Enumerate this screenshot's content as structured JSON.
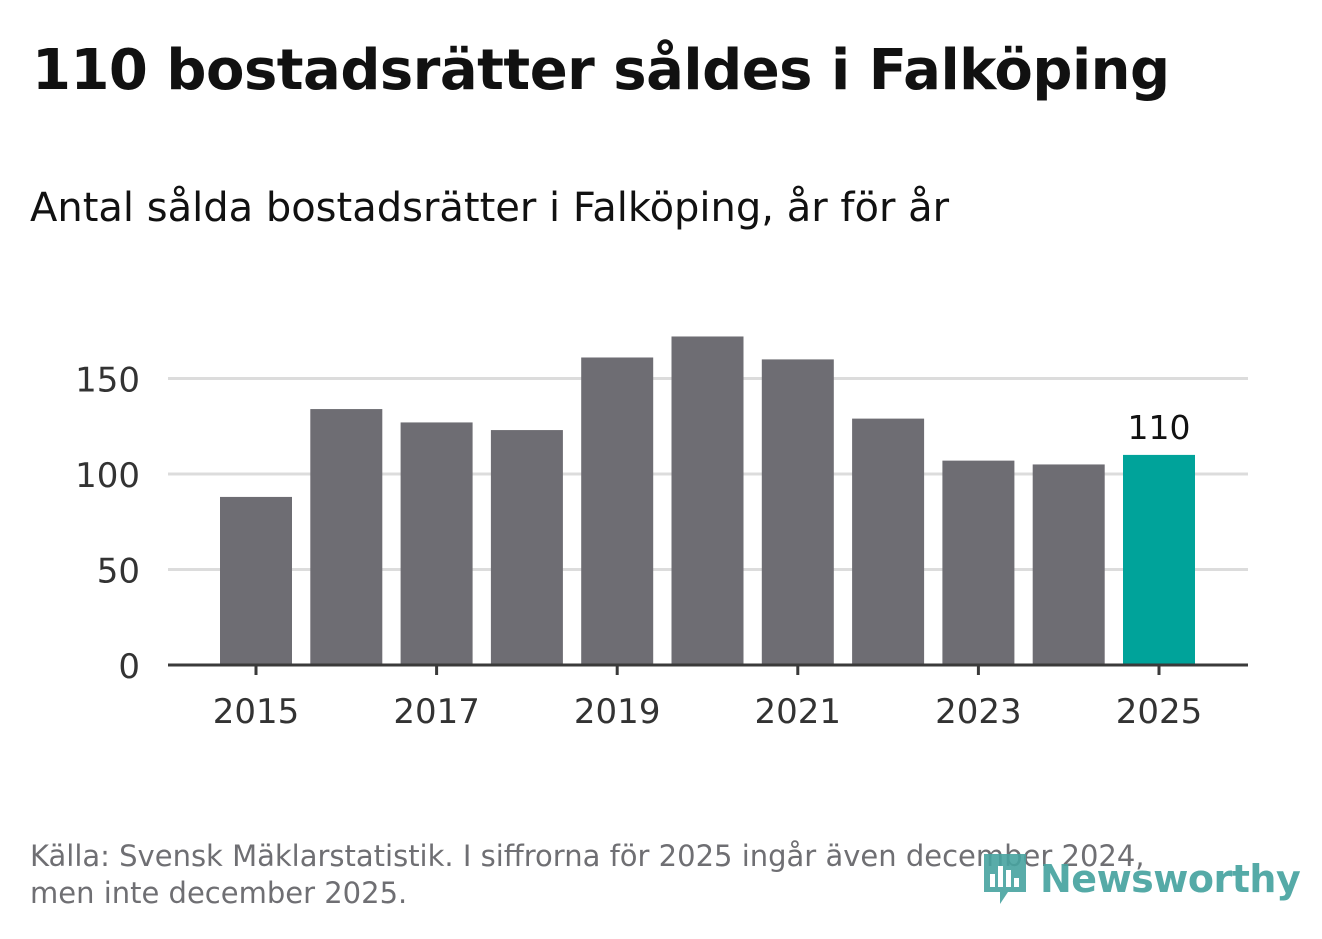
{
  "title": "110 bostadsrätter såldes i Falköping",
  "subtitle": "Antal sålda bostadsrätter i Falköping, år för år",
  "footer": {
    "line1": "Källa: Svensk Mäklarstatistik. I siffrorna för 2025 ingår även december 2024,",
    "line2": "men inte december 2025."
  },
  "brand": {
    "name": "Newsworthy",
    "icon": "bar-chart-speech-bubble-icon",
    "color": "#47a3a0"
  },
  "colors": {
    "bar": "#6e6d73",
    "highlight": "#00a39a",
    "grid": "#dcdcdc",
    "axis": "#3a3a3a"
  },
  "chart_data": {
    "type": "bar",
    "title": "Antal sålda bostadsrätter i Falköping, år för år",
    "xlabel": "",
    "ylabel": "",
    "categories": [
      "2015",
      "2016",
      "2017",
      "2018",
      "2019",
      "2020",
      "2021",
      "2022",
      "2023",
      "2024",
      "2025"
    ],
    "values": [
      88,
      134,
      127,
      123,
      161,
      172,
      160,
      129,
      107,
      105,
      110
    ],
    "ylim": [
      0,
      180
    ],
    "yticks": [
      0,
      50,
      100,
      150
    ],
    "xtick_labels": [
      "2015",
      "2017",
      "2019",
      "2021",
      "2023",
      "2025"
    ],
    "highlight_category": "2025",
    "data_labels": [
      {
        "category": "2025",
        "label": "110"
      }
    ],
    "grid": true,
    "legend": "none"
  }
}
